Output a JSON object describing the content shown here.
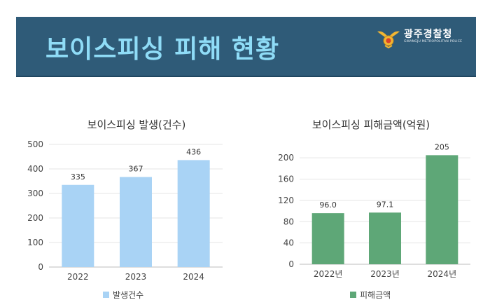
{
  "banner": {
    "title": "보이스피싱 피해 현황",
    "logo_name": "광주경찰청",
    "logo_sub": "GWANGJU METROPOLITAN POLICE"
  },
  "colors": {
    "banner_bg": "#2f5b78",
    "banner_title": "#8fdcf7",
    "bar_blue": "#a9d3f5",
    "bar_green": "#5ea777"
  },
  "chart_data": [
    {
      "type": "bar",
      "title": "보이스피싱 발생(건수)",
      "categories": [
        "2022",
        "2023",
        "2024"
      ],
      "series": [
        {
          "name": "발생건수",
          "values": [
            335,
            367,
            436
          ]
        }
      ],
      "data_labels": [
        "335",
        "367",
        "436"
      ],
      "ylim": [
        0,
        500
      ],
      "yticks": [
        0,
        100,
        200,
        300,
        400,
        500
      ],
      "grid": true,
      "legend_position": "bottom",
      "color": "#a9d3f5"
    },
    {
      "type": "bar",
      "title": "보이스피싱 피해금액(억원)",
      "categories": [
        "2022년",
        "2023년",
        "2024년"
      ],
      "series": [
        {
          "name": "피해금액",
          "values": [
            96.0,
            97.1,
            205
          ]
        }
      ],
      "data_labels": [
        "96.0",
        "97.1",
        "205"
      ],
      "ylim": [
        0,
        220
      ],
      "yticks": [
        0,
        40,
        80,
        120,
        160,
        200
      ],
      "grid": true,
      "legend_position": "bottom",
      "color": "#5ea777"
    }
  ]
}
